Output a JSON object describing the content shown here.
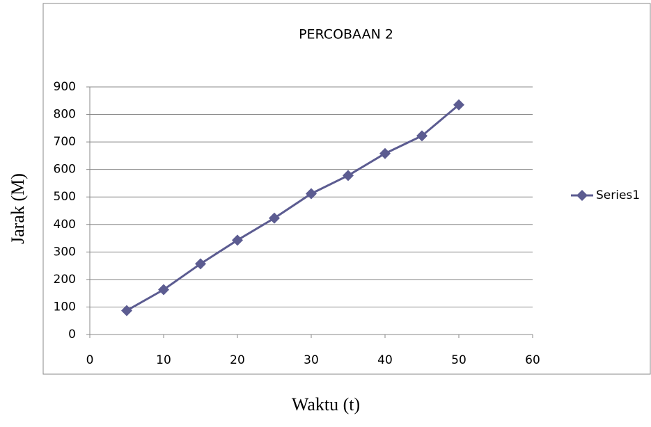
{
  "chart_data": {
    "type": "line",
    "title": "PERCOBAAN 2",
    "x_label": "Waktu (t)",
    "y_label": "Jarak (M)",
    "x": [
      5,
      10,
      15,
      20,
      25,
      30,
      35,
      40,
      45,
      50
    ],
    "series": [
      {
        "name": "Series1",
        "color": "#5c5c91",
        "values": [
          87,
          163,
          257,
          343,
          423,
          512,
          578,
          658,
          722,
          835
        ]
      }
    ],
    "xlim": [
      0,
      60
    ],
    "xticks": [
      0,
      10,
      20,
      30,
      40,
      50,
      60
    ],
    "ylim": [
      0,
      900
    ],
    "yticks": [
      0,
      100,
      200,
      300,
      400,
      500,
      600,
      700,
      800,
      900
    ],
    "grid": true,
    "legend": "right"
  }
}
